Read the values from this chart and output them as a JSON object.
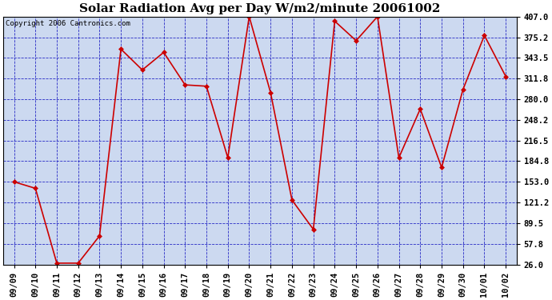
{
  "title": "Solar Radiation Avg per Day W/m2/minute 20061002",
  "copyright": "Copyright 2006 Cantronics.com",
  "dates": [
    "09/09",
    "09/10",
    "09/11",
    "09/12",
    "09/13",
    "09/14",
    "09/15",
    "09/16",
    "09/17",
    "09/18",
    "09/19",
    "09/20",
    "09/21",
    "09/22",
    "09/23",
    "09/24",
    "09/25",
    "09/26",
    "09/27",
    "09/28",
    "09/29",
    "09/30",
    "10/01",
    "10/02"
  ],
  "values": [
    153,
    143,
    28,
    28,
    70,
    357,
    325,
    352,
    302,
    300,
    190,
    407,
    290,
    125,
    80,
    400,
    370,
    407,
    190,
    265,
    175,
    295,
    378,
    315
  ],
  "line_color": "#cc0000",
  "marker_color": "#cc0000",
  "bg_color": "#ffffff",
  "plot_bg_color": "#ccd9f0",
  "grid_color": "#0000bb",
  "title_fontsize": 11,
  "copyright_fontsize": 6.5,
  "tick_fontsize": 7.5,
  "ylim": [
    26.0,
    407.0
  ],
  "yticks": [
    26.0,
    57.8,
    89.5,
    121.2,
    153.0,
    184.8,
    216.5,
    248.2,
    280.0,
    311.8,
    343.5,
    375.2,
    407.0
  ]
}
